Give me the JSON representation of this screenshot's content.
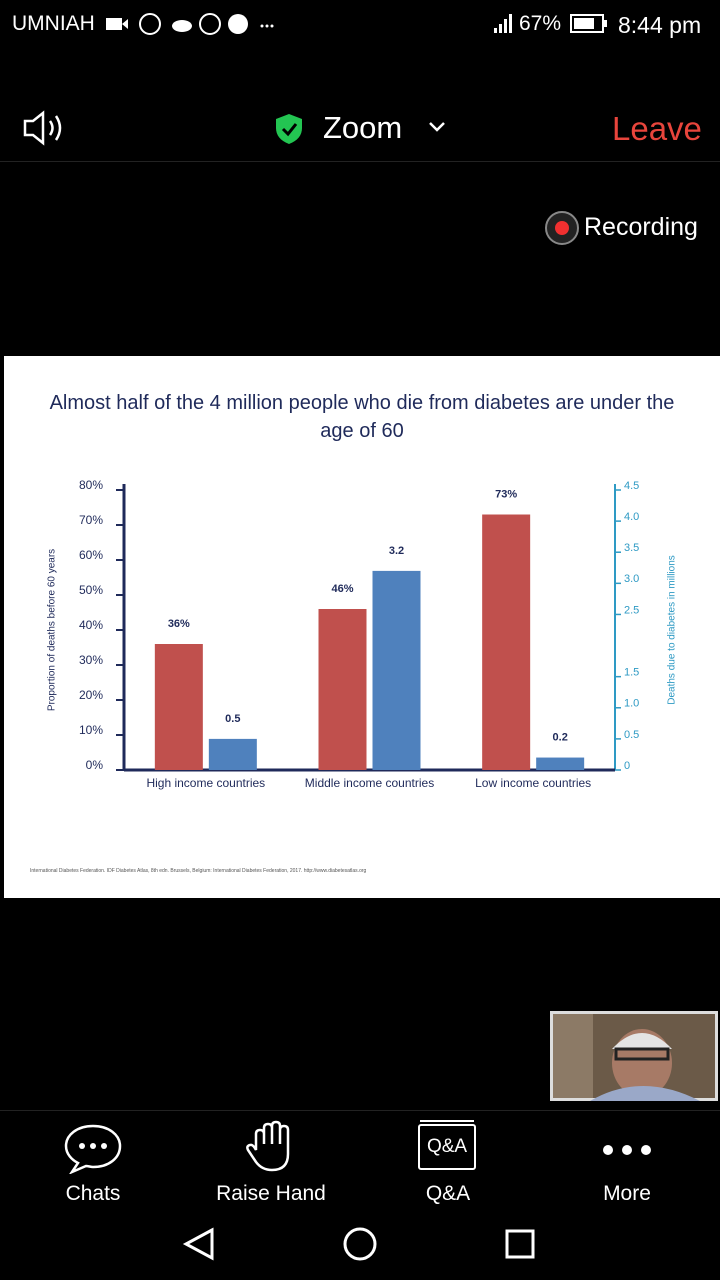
{
  "status_bar": {
    "carrier": "UMNIAH",
    "battery": "67%",
    "time": "8:44 pm"
  },
  "header": {
    "title": "Zoom",
    "leave": "Leave"
  },
  "recording": "Recording",
  "chart_data": {
    "type": "bar",
    "title": "Almost half of the 4 million people who die from diabetes are under the age of 60",
    "categories": [
      "High income countries",
      "Middle income countries",
      "Low income countries"
    ],
    "series": [
      {
        "color": "#c0504d",
        "values": [
          36,
          46,
          73
        ],
        "value_labels": [
          "36%",
          "46%",
          "73%"
        ]
      },
      {
        "color": "#4f81bd",
        "values": [
          0.5,
          3.2,
          0.2
        ],
        "axis": "y2"
      }
    ],
    "ylabel": "Proportion of deaths before 60 years",
    "y2label": "Deaths due to diabetes in millions",
    "ylim": [
      0,
      80
    ],
    "yticks": [
      {
        "value": 0,
        "label": "0%"
      },
      {
        "value": 10,
        "label": "10%"
      },
      {
        "value": 20,
        "label": "20%"
      },
      {
        "value": 30,
        "label": "30%"
      },
      {
        "value": 40,
        "label": "40%"
      },
      {
        "value": 50,
        "label": "50%"
      },
      {
        "value": 60,
        "label": "60%"
      },
      {
        "value": 70,
        "label": "70%"
      },
      {
        "value": 80,
        "label": "80%"
      }
    ],
    "y2lim": [
      0,
      4.5
    ],
    "y2ticks": [
      0,
      0.5,
      {
        "value": 1,
        "label": "1.0"
      },
      1.5,
      2.5,
      {
        "value": 3,
        "label": "3.0"
      },
      3.5,
      {
        "value": 4,
        "label": "4.0"
      },
      4.5
    ],
    "source": "International Diabetes Federation. IDF Diabetes Atlas, 8th edn. Brussels, Belgium: International Diabetes Federation, 2017. http://www.diabetesatlas.org"
  },
  "toolbar": {
    "items": [
      "Chats",
      "Raise Hand",
      "Q&A",
      "More"
    ],
    "qa_icon": "Q&A"
  }
}
